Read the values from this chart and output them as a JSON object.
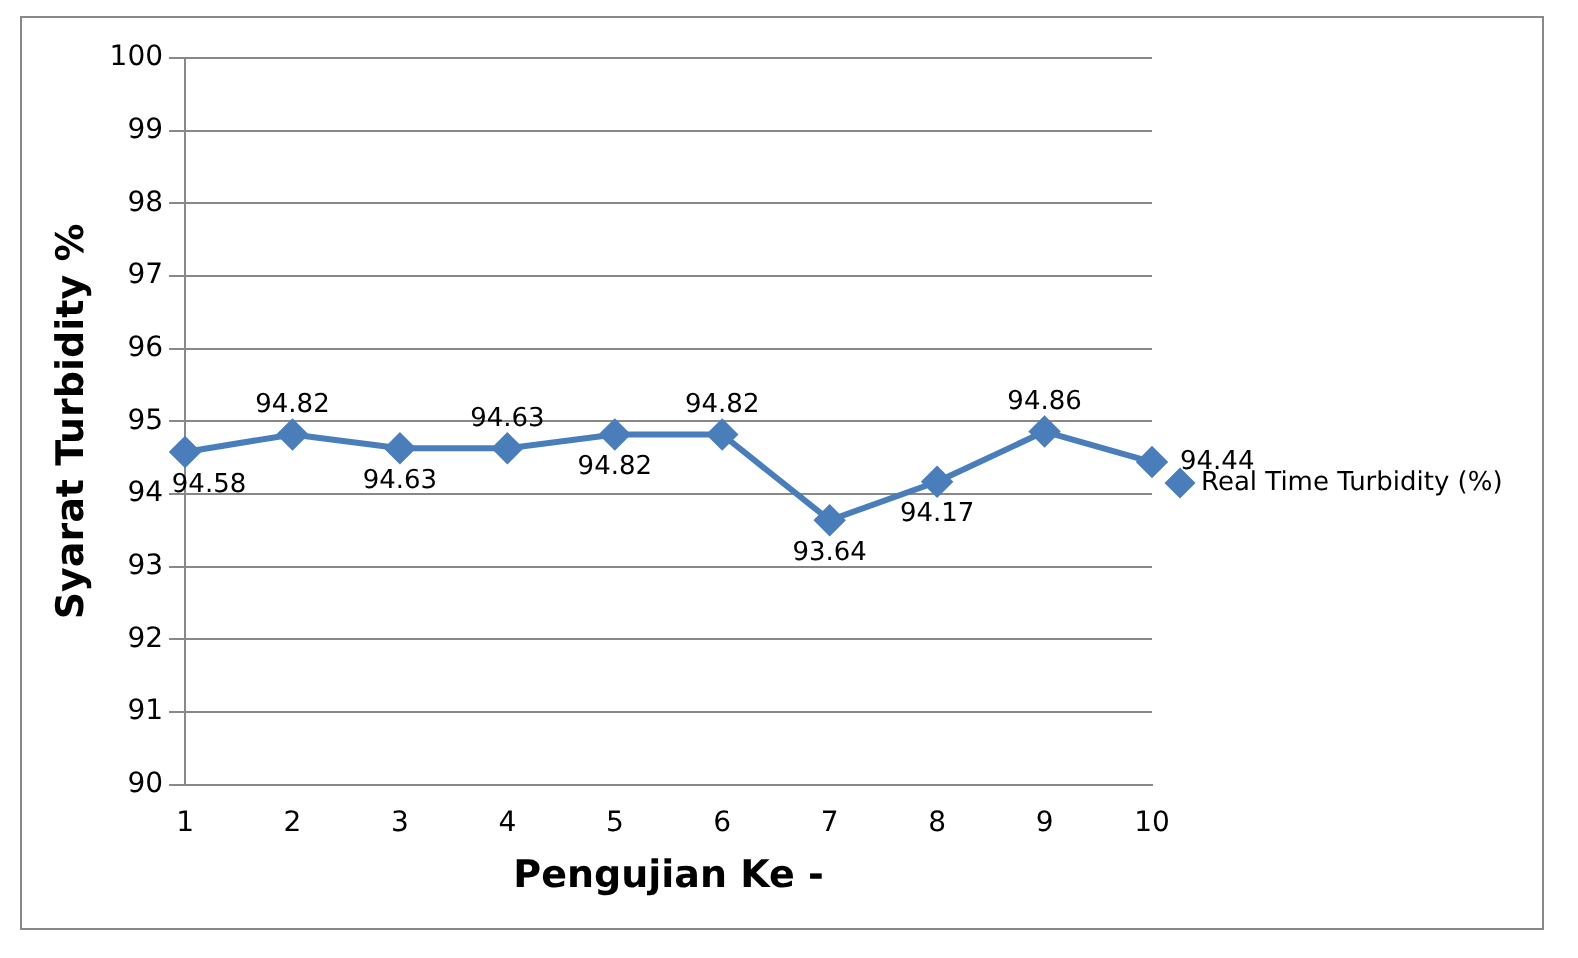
{
  "chart_data": {
    "type": "line",
    "xlabel": "Pengujian Ke -",
    "ylabel": "Syarat Turbidity %",
    "categories": [
      "1",
      "2",
      "3",
      "4",
      "5",
      "6",
      "7",
      "8",
      "9",
      "10"
    ],
    "series": [
      {
        "name": "Real Time Turbidity (%)",
        "color": "#4a7ebb",
        "values": [
          94.58,
          94.82,
          94.63,
          94.63,
          94.82,
          94.82,
          93.64,
          94.17,
          94.86,
          94.44
        ]
      }
    ],
    "ylim": [
      90,
      100
    ],
    "yticks": [
      90,
      91,
      92,
      93,
      94,
      95,
      96,
      97,
      98,
      99,
      100
    ],
    "grid": "y",
    "legend": "right",
    "marker": "diamond",
    "line_style": "solid",
    "data_labels": true
  }
}
